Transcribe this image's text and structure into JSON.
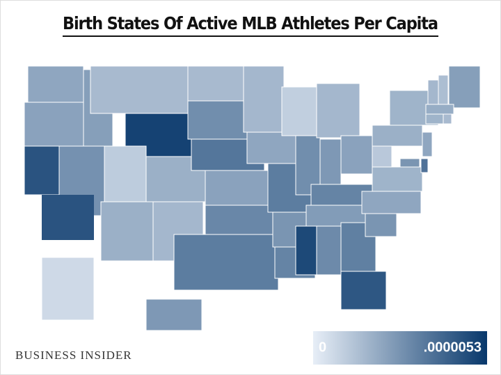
{
  "chart_data": {
    "type": "choropleth",
    "title": "Birth States Of Active MLB Athletes Per Capita",
    "source": "BUSINESS INSIDER",
    "values": [
      2.1e-06,
      2.2e-06,
      4.5e-06,
      2.7e-06,
      2.3e-06,
      1.5e-06,
      5e-06,
      1e-06,
      1.8e-06,
      1.8e-06,
      1.6e-06,
      1.5e-06,
      2.8e-06,
      3.5e-06,
      2.2e-06,
      3e-06,
      3.3e-06,
      1.6e-06,
      2.1e-06,
      3.3e-06,
      2.6e-06,
      3.1e-06,
      9e-07,
      2.8e-06,
      1.6e-06,
      2.5e-06,
      2.2e-06,
      3.1e-06,
      2.4e-06,
      4.8e-06,
      2.9e-06,
      3.2e-06,
      4.4e-06,
      2.6e-06,
      2.1e-06,
      1.7e-06,
      1.1e-06,
      1.8e-06,
      1.7e-06,
      1.6e-06,
      1.4e-06,
      2.3e-06,
      1.9e-06,
      1.7e-06,
      1.5e-06,
      2.1e-06,
      3.6e-06,
      2.6e-06,
      6e-07,
      2.5e-06
    ],
    "color_scale": [
      "#e7eef7",
      "#08386b"
    ],
    "legend_ticks": [
      0,
      {
        "value": 5.3e-06,
        "label": ".0000053"
      }
    ]
  }
}
